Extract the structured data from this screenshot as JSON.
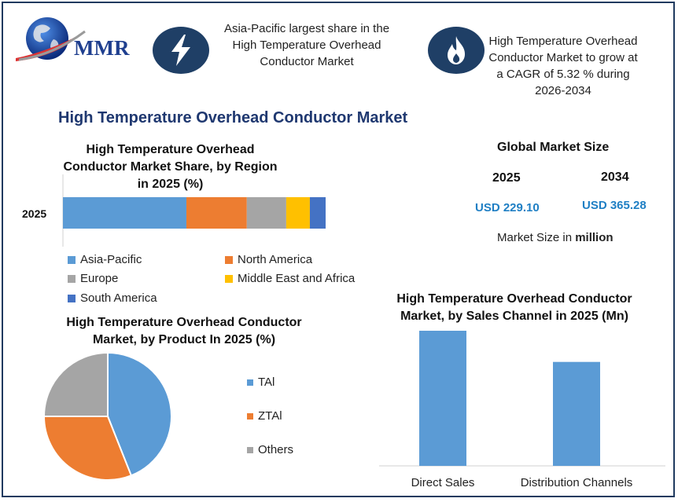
{
  "header": {
    "logo_text": "MMR",
    "region_note": "Asia-Pacific largest share in the High Temperature Overhead Conductor Market",
    "cagr_note": "High Temperature Overhead Conductor Market to grow at a CAGR of 5.32 % during 2026-2034",
    "icons": [
      "globe-icon",
      "lightning-bolt-icon",
      "flame-icon"
    ]
  },
  "main_title": "High Temperature Overhead Conductor Market",
  "market_size": {
    "title": "Global Market Size",
    "year_a": "2025",
    "year_b": "2034",
    "value_a": "USD 229.10",
    "value_b": "USD 365.28",
    "unit_prefix": "Market Size in ",
    "unit_bold": "million"
  },
  "colors": {
    "blue": "#5b9bd5",
    "orange": "#ed7d31",
    "gray": "#a5a5a5",
    "yellow": "#ffc000",
    "darkblue": "#4472c4",
    "navy": "#1f3f66"
  },
  "chart_data": [
    {
      "type": "bar",
      "orientation": "horizontal-stacked",
      "title": "High Temperature Overhead Conductor Market Share, by Region in 2025 (%)",
      "categories": [
        "2025"
      ],
      "series": [
        {
          "name": "Asia-Pacific",
          "values": [
            47
          ]
        },
        {
          "name": "North America",
          "values": [
            23
          ]
        },
        {
          "name": "Europe",
          "values": [
            15
          ]
        },
        {
          "name": "Middle East and Africa",
          "values": [
            9
          ]
        },
        {
          "name": "South America",
          "values": [
            6
          ]
        }
      ],
      "legend": "bottom"
    },
    {
      "type": "pie",
      "title": "High Temperature Overhead Conductor Market, by Product In 2025 (%)",
      "labels": [
        "TAl",
        "ZTAl",
        "Others"
      ],
      "values": [
        44,
        31,
        25
      ],
      "legend": "right"
    },
    {
      "type": "bar",
      "title": "High Temperature Overhead Conductor Market, by Sales Channel in 2025 (Mn)",
      "categories": [
        "Direct Sales",
        "Distribution Channels"
      ],
      "values": [
        130,
        100
      ],
      "ylim": [
        0,
        130
      ]
    }
  ]
}
